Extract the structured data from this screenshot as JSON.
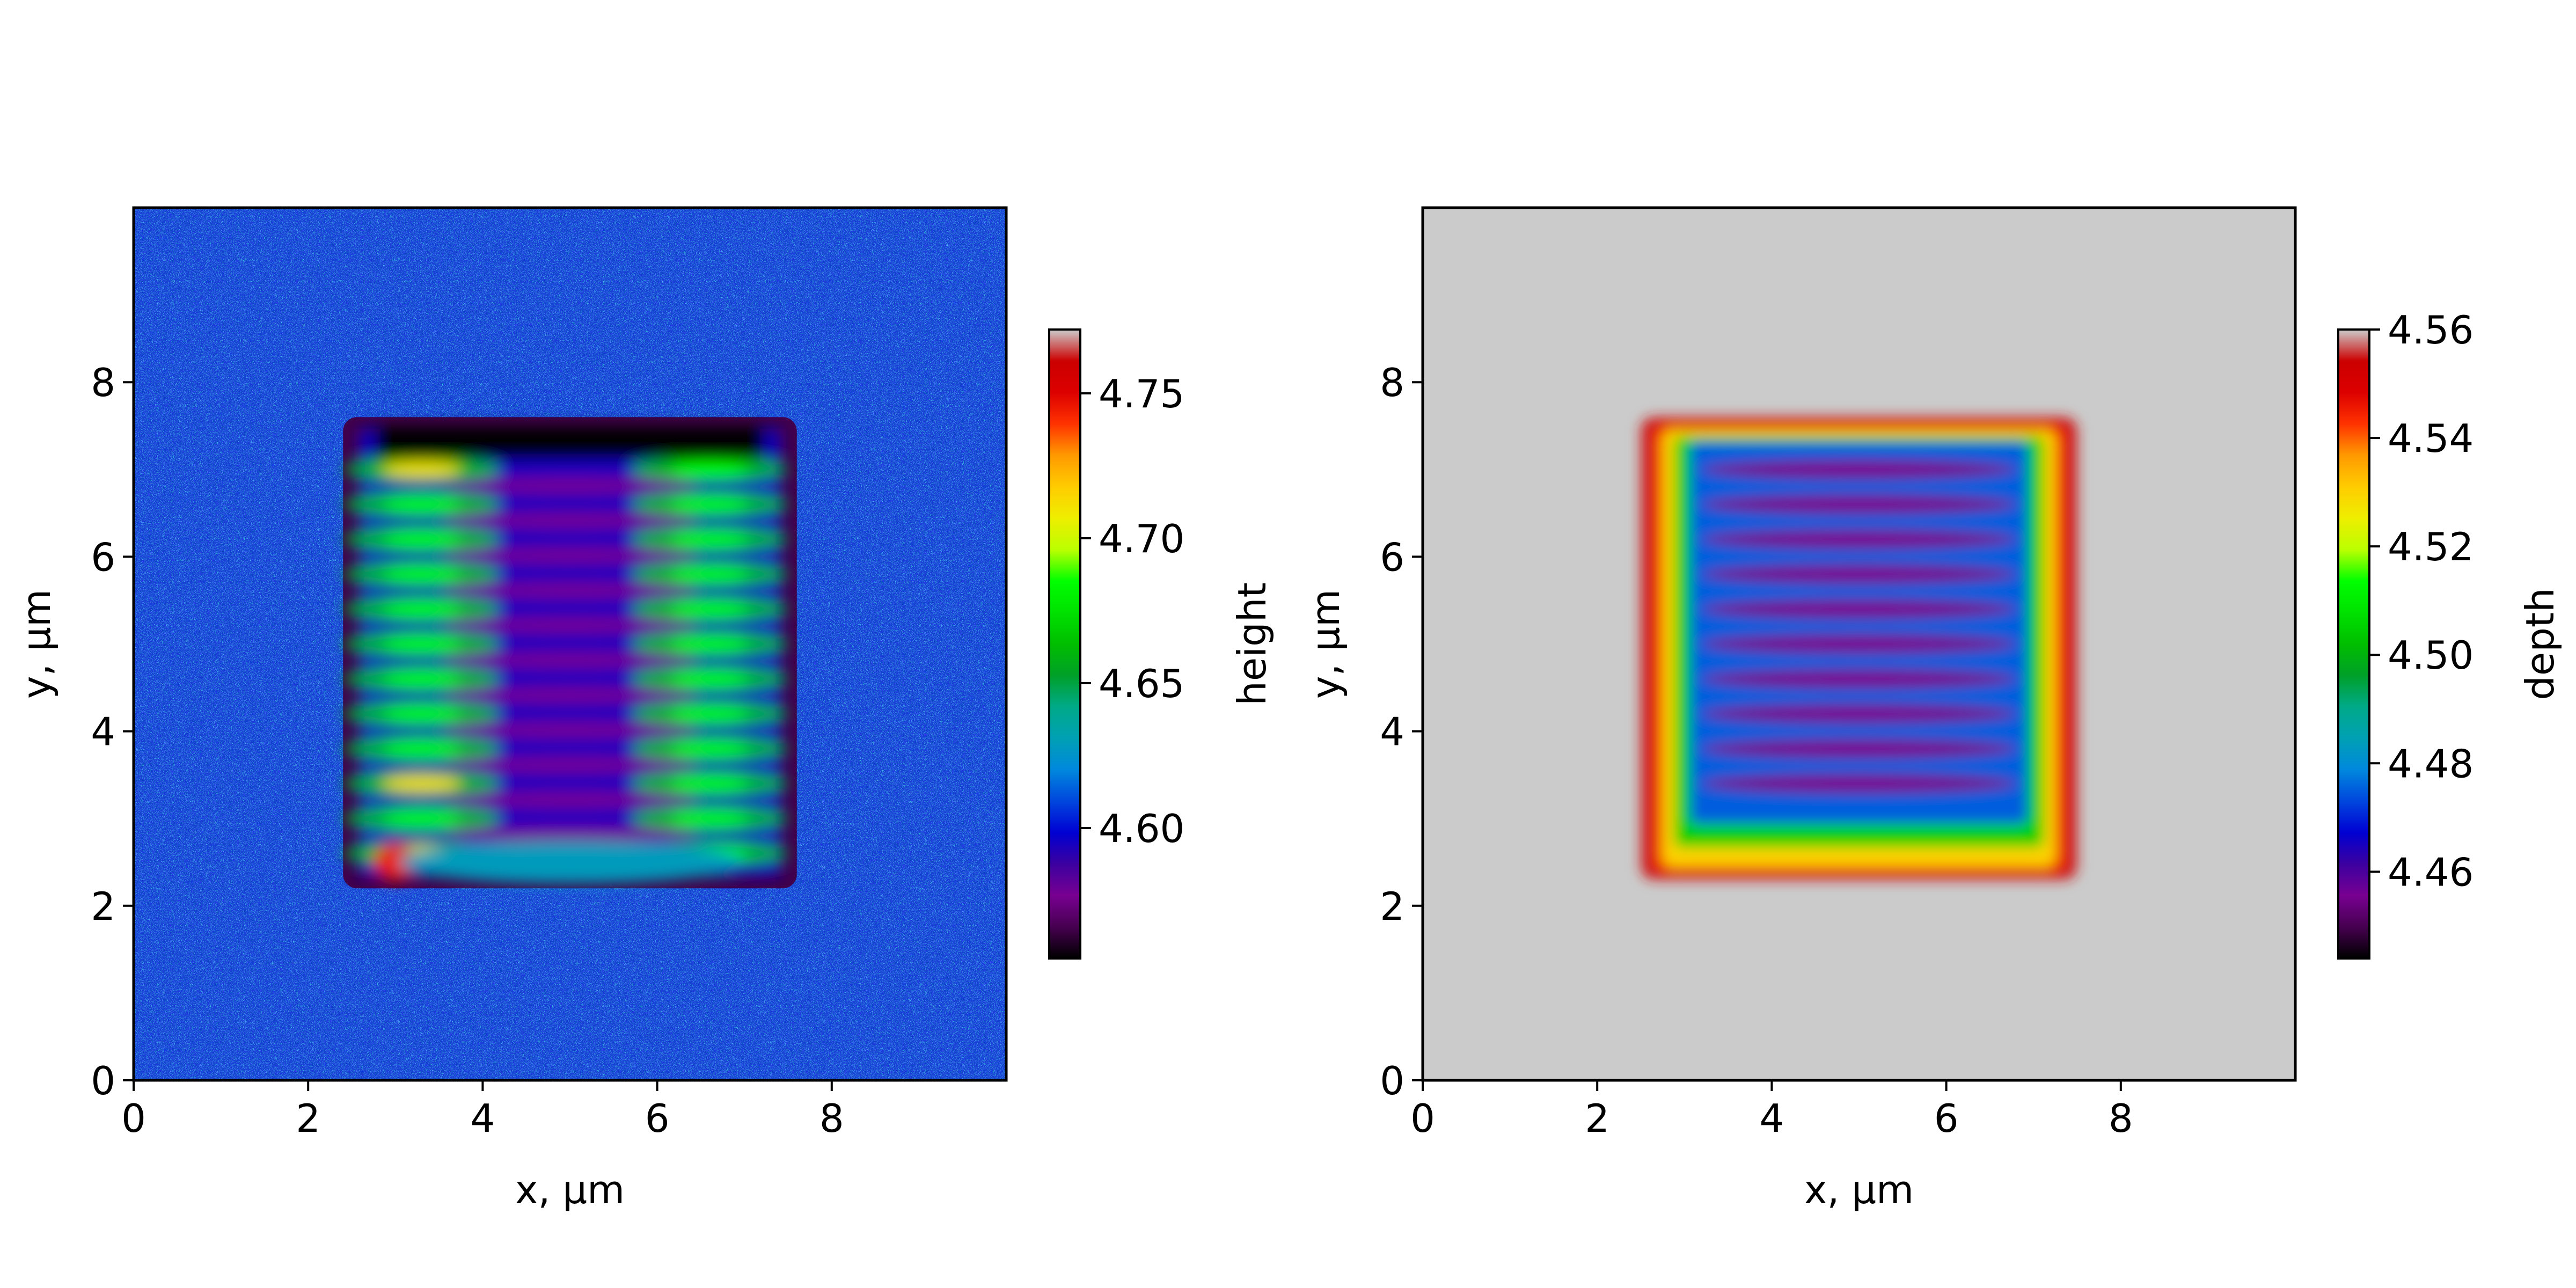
{
  "chart_data": [
    {
      "type": "heatmap",
      "title": "",
      "xlabel": "x, µm",
      "ylabel": "y, µm",
      "xlim": [
        0,
        10
      ],
      "ylim": [
        0,
        10
      ],
      "x_ticks": [
        0,
        2,
        4,
        6,
        8
      ],
      "y_ticks": [
        0,
        2,
        4,
        6,
        8
      ],
      "x_tick_labels": [
        "0",
        "2",
        "4",
        "6",
        "8"
      ],
      "y_tick_labels": [
        "0",
        "2",
        "4",
        "6",
        "8"
      ],
      "colorbar": {
        "label": "height",
        "range": [
          4.555,
          4.772
        ],
        "ticks": [
          4.6,
          4.65,
          4.7,
          4.75
        ],
        "tick_labels": [
          "4.60",
          "4.65",
          "4.70",
          "4.75"
        ],
        "colormap": "nipy_spectral"
      },
      "background_level": 4.615,
      "feature": {
        "description_kind": "raised rectangular pile",
        "x_range": [
          2.4,
          7.6
        ],
        "y_range": [
          2.2,
          7.6
        ],
        "ridge_rows_y": [
          2.6,
          3.0,
          3.4,
          3.8,
          4.2,
          4.6,
          5.0,
          5.4,
          5.8,
          6.2,
          6.6,
          7.0
        ],
        "peak_x_left": 3.3,
        "peak_x_right": 6.6,
        "rim_level": 4.565,
        "peak_level": 4.7
      }
    },
    {
      "type": "heatmap",
      "title": "",
      "xlabel": "x, µm",
      "ylabel": "y, µm",
      "xlim": [
        0,
        10
      ],
      "ylim": [
        0,
        10
      ],
      "x_ticks": [
        0,
        2,
        4,
        6,
        8
      ],
      "y_ticks": [
        0,
        2,
        4,
        6,
        8
      ],
      "x_tick_labels": [
        "0",
        "2",
        "4",
        "6",
        "8"
      ],
      "y_tick_labels": [
        "0",
        "2",
        "4",
        "6",
        "8"
      ],
      "colorbar": {
        "label": "depth",
        "range": [
          4.444,
          4.56
        ],
        "ticks": [
          4.46,
          4.48,
          4.5,
          4.52,
          4.54,
          4.56
        ],
        "tick_labels": [
          "4.46",
          "4.48",
          "4.50",
          "4.52",
          "4.54",
          "4.56"
        ],
        "colormap": "nipy_spectral"
      },
      "background": "above range (grey)",
      "feature": {
        "description_kind": "rectangular well",
        "x_range": [
          2.5,
          7.5
        ],
        "y_range": [
          2.3,
          7.6
        ],
        "trough_rows_y": [
          3.4,
          3.8,
          4.2,
          4.6,
          5.0,
          5.4,
          5.8,
          6.2,
          6.6,
          7.0
        ],
        "edge_level": 4.55,
        "bottom_level": 4.455
      }
    }
  ]
}
